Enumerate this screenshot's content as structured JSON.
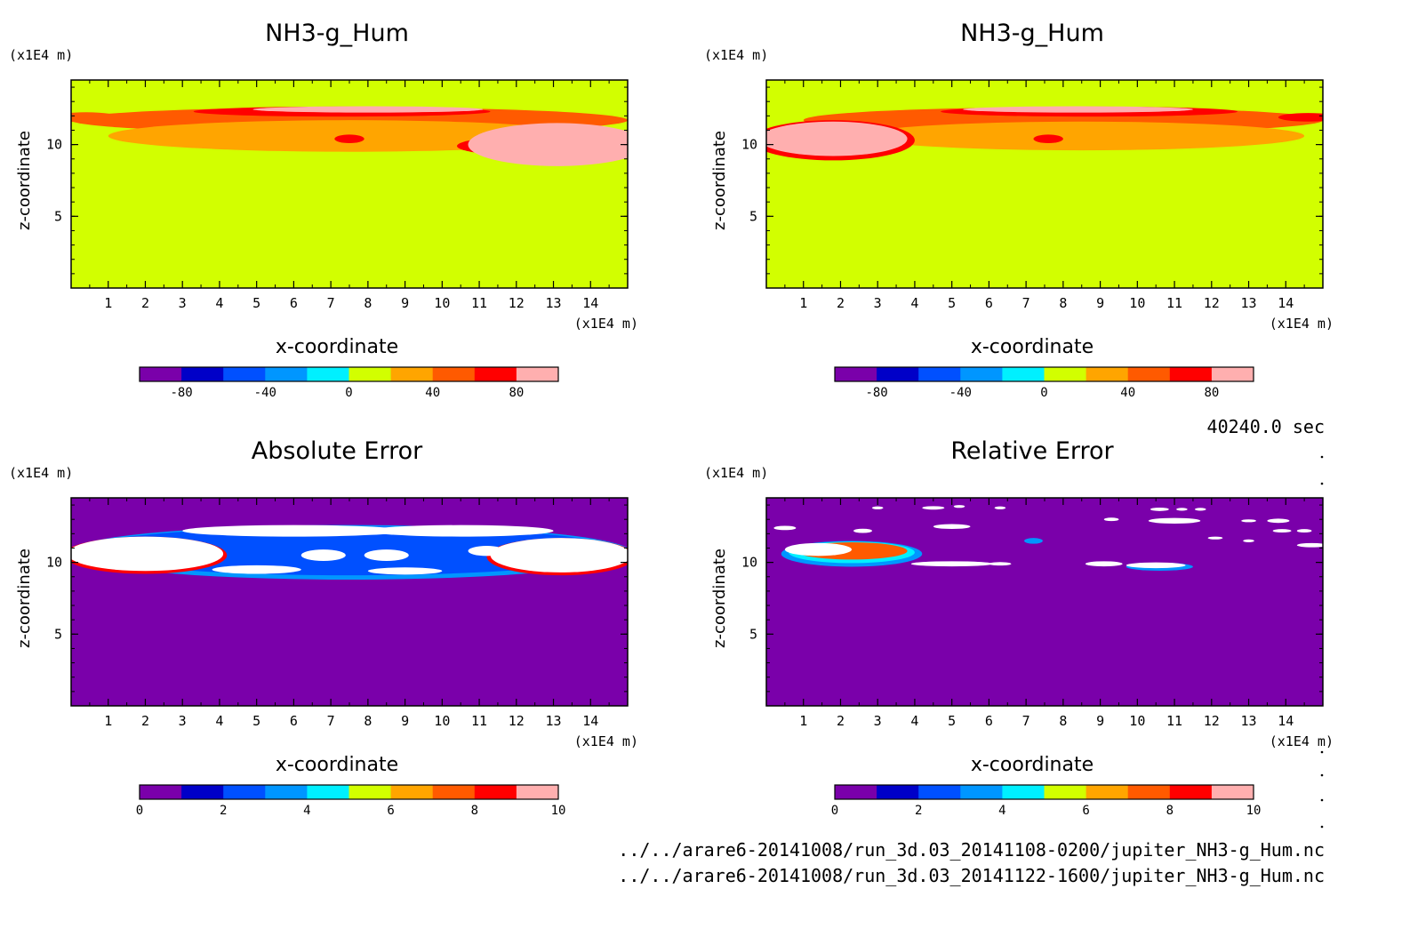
{
  "colors": {
    "levels": [
      "#7a00aa",
      "#0000c8",
      "#0050ff",
      "#0096ff",
      "#00f0ff",
      "#d2ff00",
      "#ffa500",
      "#ff5a00",
      "#ff0000",
      "#ffafaf"
    ],
    "background_fill_top": "#d2ff00",
    "background_fill_bottom": "#7a00aa",
    "white": "#ffffff"
  },
  "footer": {
    "time_label": "40240.0 sec",
    "file1": "../../arare6-20141008/run_3d.03_20141108-0200/jupiter_NH3-g_Hum.nc",
    "file2": "../../arare6-20141008/run_3d.03_20141122-1600/jupiter_NH3-g_Hum.nc"
  },
  "chart_data": [
    {
      "type": "heatmap",
      "title": "NH3-g_Hum",
      "xlabel": "x-coordinate",
      "ylabel": "z-coordinate",
      "x_unit": "(x1E4 m)",
      "y_unit": "(x1E4 m)",
      "xlim": [
        0,
        15
      ],
      "ylim": [
        0,
        14.5
      ],
      "xticks": [
        "1",
        "2",
        "3",
        "4",
        "5",
        "6",
        "7",
        "8",
        "9",
        "10",
        "11",
        "12",
        "13",
        "14"
      ],
      "yticks": [
        "5",
        "10"
      ],
      "colorbar": {
        "ticks": [
          "-80",
          "-40",
          "0",
          "40",
          "80"
        ],
        "range": [
          -100,
          100
        ],
        "levels": 10
      },
      "features": [
        {
          "cx": 7.5,
          "cy": 11.7,
          "rx": 7.5,
          "ry": 0.9,
          "level": 7
        },
        {
          "cx": 7.5,
          "cy": 10.6,
          "rx": 6.5,
          "ry": 1.1,
          "level": 6
        },
        {
          "cx": 7.3,
          "cy": 12.3,
          "rx": 4.0,
          "ry": 0.35,
          "level": 8
        },
        {
          "cx": 8.0,
          "cy": 12.45,
          "rx": 3.1,
          "ry": 0.22,
          "level": 9
        },
        {
          "cx": 0.4,
          "cy": 11.9,
          "rx": 0.9,
          "ry": 0.35,
          "level": 7
        },
        {
          "cx": 7.5,
          "cy": 10.4,
          "rx": 0.4,
          "ry": 0.3,
          "level": 8
        },
        {
          "cx": 13.1,
          "cy": 9.9,
          "rx": 2.7,
          "ry": 0.8,
          "level": 8
        },
        {
          "cx": 13.1,
          "cy": 10.0,
          "rx": 2.4,
          "ry": 1.5,
          "level": 9
        }
      ]
    },
    {
      "type": "heatmap",
      "title": "NH3-g_Hum",
      "xlabel": "x-coordinate",
      "ylabel": "z-coordinate",
      "x_unit": "(x1E4 m)",
      "y_unit": "(x1E4 m)",
      "xlim": [
        0,
        15
      ],
      "ylim": [
        0,
        14.5
      ],
      "xticks": [
        "1",
        "2",
        "3",
        "4",
        "5",
        "6",
        "7",
        "8",
        "9",
        "10",
        "11",
        "12",
        "13",
        "14"
      ],
      "yticks": [
        "5",
        "10"
      ],
      "colorbar": {
        "ticks": [
          "-80",
          "-40",
          "0",
          "40",
          "80"
        ],
        "range": [
          -100,
          100
        ],
        "levels": 10
      },
      "features": [
        {
          "cx": 8.0,
          "cy": 11.7,
          "rx": 7.0,
          "ry": 0.9,
          "level": 7
        },
        {
          "cx": 8.5,
          "cy": 10.6,
          "rx": 6.0,
          "ry": 1.0,
          "level": 6
        },
        {
          "cx": 8.7,
          "cy": 12.3,
          "rx": 4.0,
          "ry": 0.35,
          "level": 8
        },
        {
          "cx": 8.4,
          "cy": 12.45,
          "rx": 3.1,
          "ry": 0.22,
          "level": 9
        },
        {
          "cx": 14.6,
          "cy": 11.9,
          "rx": 0.8,
          "ry": 0.3,
          "level": 8
        },
        {
          "cx": 7.6,
          "cy": 10.4,
          "rx": 0.4,
          "ry": 0.3,
          "level": 8
        },
        {
          "cx": 1.8,
          "cy": 10.3,
          "rx": 2.2,
          "ry": 1.4,
          "level": 8
        },
        {
          "cx": 1.8,
          "cy": 10.4,
          "rx": 2.0,
          "ry": 1.2,
          "level": 9
        }
      ]
    },
    {
      "type": "heatmap",
      "title": "Absolute Error",
      "xlabel": "x-coordinate",
      "ylabel": "z-coordinate",
      "x_unit": "(x1E4 m)",
      "y_unit": "(x1E4 m)",
      "xlim": [
        0,
        15
      ],
      "ylim": [
        0,
        14.5
      ],
      "xticks": [
        "1",
        "2",
        "3",
        "4",
        "5",
        "6",
        "7",
        "8",
        "9",
        "10",
        "11",
        "12",
        "13",
        "14"
      ],
      "yticks": [
        "5",
        "10"
      ],
      "colorbar": {
        "ticks": [
          "0",
          "2",
          "4",
          "6",
          "8",
          "10"
        ],
        "range": [
          0,
          10
        ],
        "levels": 10
      },
      "features": [
        {
          "cx": 7.5,
          "cy": 10.7,
          "rx": 7.6,
          "ry": 1.9,
          "level": 3
        },
        {
          "cx": 7.5,
          "cy": 10.8,
          "rx": 7.3,
          "ry": 1.7,
          "level": 2
        },
        {
          "cx": 2.0,
          "cy": 10.5,
          "rx": 2.2,
          "ry": 1.3,
          "level": 8
        },
        {
          "cx": 2.0,
          "cy": 10.6,
          "rx": 2.1,
          "ry": 1.2,
          "level": 10
        },
        {
          "cx": 13.2,
          "cy": 10.4,
          "rx": 2.0,
          "ry": 1.3,
          "level": 8
        },
        {
          "cx": 13.2,
          "cy": 10.5,
          "rx": 1.9,
          "ry": 1.2,
          "level": 10
        },
        {
          "cx": 6.0,
          "cy": 12.2,
          "rx": 3.0,
          "ry": 0.4,
          "level": 10
        },
        {
          "cx": 10.5,
          "cy": 12.2,
          "rx": 2.5,
          "ry": 0.4,
          "level": 10
        },
        {
          "cx": 5.0,
          "cy": 9.5,
          "rx": 1.2,
          "ry": 0.3,
          "level": 10
        },
        {
          "cx": 9.0,
          "cy": 9.4,
          "rx": 1.0,
          "ry": 0.25,
          "level": 10
        },
        {
          "cx": 6.8,
          "cy": 10.5,
          "rx": 0.6,
          "ry": 0.4,
          "level": 10
        },
        {
          "cx": 8.5,
          "cy": 10.5,
          "rx": 0.6,
          "ry": 0.4,
          "level": 10
        },
        {
          "cx": 11.2,
          "cy": 10.8,
          "rx": 0.5,
          "ry": 0.35,
          "level": 10
        }
      ]
    },
    {
      "type": "heatmap",
      "title": "Relative Error",
      "xlabel": "x-coordinate",
      "ylabel": "z-coordinate",
      "x_unit": "(x1E4 m)",
      "y_unit": "(x1E4 m)",
      "xlim": [
        0,
        15
      ],
      "ylim": [
        0,
        14.5
      ],
      "xticks": [
        "1",
        "2",
        "3",
        "4",
        "5",
        "6",
        "7",
        "8",
        "9",
        "10",
        "11",
        "12",
        "13",
        "14"
      ],
      "yticks": [
        "5",
        "10"
      ],
      "colorbar": {
        "ticks": [
          "0",
          "2",
          "4",
          "6",
          "8",
          "10"
        ],
        "range": [
          0,
          10
        ],
        "levels": 10
      },
      "features": [
        {
          "cx": 2.3,
          "cy": 10.6,
          "rx": 1.9,
          "ry": 0.9,
          "level": 3
        },
        {
          "cx": 2.3,
          "cy": 10.7,
          "rx": 1.7,
          "ry": 0.75,
          "level": 4
        },
        {
          "cx": 2.3,
          "cy": 10.8,
          "rx": 1.5,
          "ry": 0.6,
          "level": 7
        },
        {
          "cx": 1.4,
          "cy": 10.9,
          "rx": 0.9,
          "ry": 0.45,
          "level": 10
        },
        {
          "cx": 5.0,
          "cy": 9.9,
          "rx": 1.1,
          "ry": 0.18,
          "level": 10
        },
        {
          "cx": 0.5,
          "cy": 12.4,
          "rx": 0.3,
          "ry": 0.15,
          "level": 10
        },
        {
          "cx": 2.6,
          "cy": 12.2,
          "rx": 0.25,
          "ry": 0.15,
          "level": 10
        },
        {
          "cx": 3.0,
          "cy": 13.8,
          "rx": 0.15,
          "ry": 0.1,
          "level": 10
        },
        {
          "cx": 4.5,
          "cy": 13.8,
          "rx": 0.3,
          "ry": 0.12,
          "level": 10
        },
        {
          "cx": 5.0,
          "cy": 12.5,
          "rx": 0.5,
          "ry": 0.17,
          "level": 10
        },
        {
          "cx": 5.2,
          "cy": 13.9,
          "rx": 0.15,
          "ry": 0.1,
          "level": 10
        },
        {
          "cx": 6.3,
          "cy": 13.8,
          "rx": 0.15,
          "ry": 0.1,
          "level": 10
        },
        {
          "cx": 7.2,
          "cy": 11.5,
          "rx": 0.25,
          "ry": 0.2,
          "level": 3
        },
        {
          "cx": 6.3,
          "cy": 9.9,
          "rx": 0.3,
          "ry": 0.12,
          "level": 10
        },
        {
          "cx": 9.1,
          "cy": 9.9,
          "rx": 0.5,
          "ry": 0.18,
          "level": 10
        },
        {
          "cx": 10.6,
          "cy": 9.7,
          "rx": 0.9,
          "ry": 0.28,
          "level": 3
        },
        {
          "cx": 10.5,
          "cy": 9.8,
          "rx": 0.8,
          "ry": 0.2,
          "level": 10
        },
        {
          "cx": 9.3,
          "cy": 13.0,
          "rx": 0.2,
          "ry": 0.12,
          "level": 10
        },
        {
          "cx": 10.6,
          "cy": 13.7,
          "rx": 0.25,
          "ry": 0.12,
          "level": 10
        },
        {
          "cx": 11.2,
          "cy": 13.7,
          "rx": 0.15,
          "ry": 0.1,
          "level": 10
        },
        {
          "cx": 11.7,
          "cy": 13.7,
          "rx": 0.15,
          "ry": 0.1,
          "level": 10
        },
        {
          "cx": 11.0,
          "cy": 12.9,
          "rx": 0.7,
          "ry": 0.2,
          "level": 10
        },
        {
          "cx": 12.1,
          "cy": 11.7,
          "rx": 0.2,
          "ry": 0.1,
          "level": 10
        },
        {
          "cx": 13.0,
          "cy": 11.5,
          "rx": 0.15,
          "ry": 0.1,
          "level": 10
        },
        {
          "cx": 13.0,
          "cy": 12.9,
          "rx": 0.2,
          "ry": 0.1,
          "level": 10
        },
        {
          "cx": 13.8,
          "cy": 12.9,
          "rx": 0.3,
          "ry": 0.15,
          "level": 10
        },
        {
          "cx": 13.9,
          "cy": 12.2,
          "rx": 0.25,
          "ry": 0.12,
          "level": 10
        },
        {
          "cx": 14.5,
          "cy": 12.2,
          "rx": 0.2,
          "ry": 0.12,
          "level": 10
        },
        {
          "cx": 14.7,
          "cy": 11.2,
          "rx": 0.4,
          "ry": 0.15,
          "level": 10
        }
      ]
    }
  ]
}
